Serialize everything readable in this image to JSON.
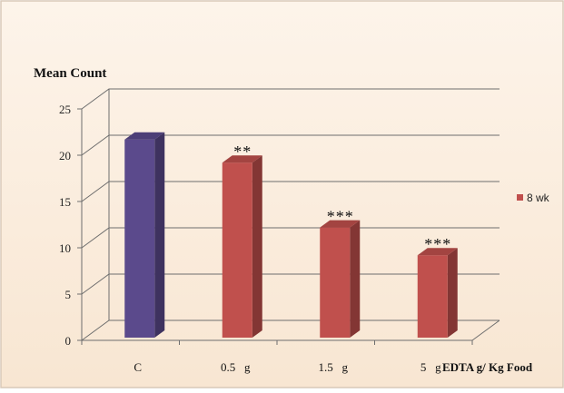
{
  "chart_data": {
    "type": "bar",
    "ylabel": "Mean Count",
    "xlabel": "EDTA g/ Kg Food",
    "categories": [
      "C",
      "0.5   g",
      "1.5   g",
      "5   g"
    ],
    "values": [
      21.5,
      19,
      12,
      9
    ],
    "annotations": [
      "",
      "**",
      "***",
      "***"
    ],
    "bar_colors": [
      "#5b4a8c",
      "#c0504d",
      "#c0504d",
      "#c0504d"
    ],
    "ylim": [
      0,
      25
    ],
    "yticks": [
      "0",
      "5",
      "10",
      "15",
      "20",
      "25"
    ],
    "grid": true,
    "legend": {
      "placement": "right",
      "entries": [
        {
          "label": "8 wk",
          "color": "#c0504d"
        }
      ]
    },
    "colors": {
      "background": "#fbefe2",
      "border": "#d9c9b8",
      "grid": "#6e6e6e"
    }
  }
}
